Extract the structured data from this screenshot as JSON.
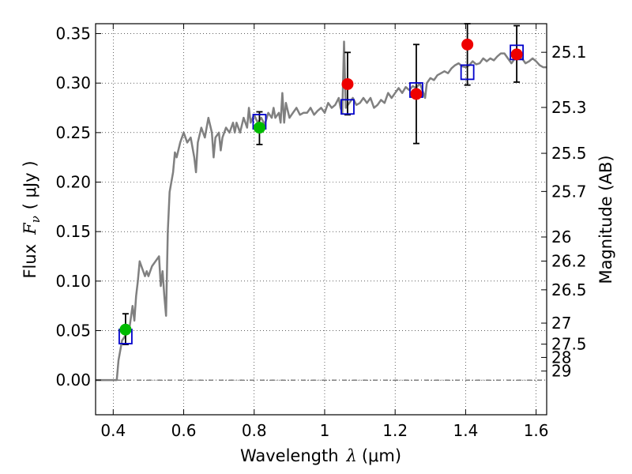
{
  "chart_data": {
    "type": "scatter",
    "xlabel_main": "Wavelength",
    "xlabel_sym": "λ",
    "xlabel_unit": "(μm)",
    "ylabel_main": "Flux",
    "ylabel_sym": "F",
    "ylabel_sub": "ν",
    "ylabel_unit": "( μJy )",
    "y2label": "Magnitude (AB)",
    "xlim": [
      0.35,
      1.63
    ],
    "ylim": [
      -0.035,
      0.36
    ],
    "x_ticks": [
      0.4,
      0.6,
      0.8,
      1.0,
      1.2,
      1.4,
      1.6
    ],
    "x_tick_labels": [
      "0.4",
      "0.6",
      "0.8",
      "1",
      "1.2",
      "1.4",
      "1.6"
    ],
    "y_ticks": [
      0.0,
      0.05,
      0.1,
      0.15,
      0.2,
      0.25,
      0.3,
      0.35
    ],
    "y_tick_labels": [
      "0.00",
      "0.05",
      "0.10",
      "0.15",
      "0.20",
      "0.25",
      "0.30",
      "0.35"
    ],
    "mag_ticks": [
      25.1,
      25.3,
      25.5,
      25.7,
      26,
      26.2,
      26.5,
      27,
      27.5,
      28,
      29
    ],
    "mag_tick_labels": [
      "25.1",
      "25.3",
      "25.5",
      "25.7",
      "26",
      "26.2",
      "26.5",
      "27",
      "27.5",
      "28",
      "29"
    ],
    "grid": true,
    "colors": {
      "spectrum": "#808080",
      "green_points": "#00bb00",
      "red_points": "#ee0000",
      "model_boxes": "#0000cc",
      "errorbars": "#000000"
    },
    "spectrum": {
      "name": "model spectrum",
      "points": [
        [
          0.35,
          0.0
        ],
        [
          0.4,
          0.0
        ],
        [
          0.41,
          0.0
        ],
        [
          0.415,
          0.02
        ],
        [
          0.425,
          0.04
        ],
        [
          0.435,
          0.045
        ],
        [
          0.445,
          0.05
        ],
        [
          0.455,
          0.075
        ],
        [
          0.46,
          0.06
        ],
        [
          0.465,
          0.085
        ],
        [
          0.47,
          0.1
        ],
        [
          0.475,
          0.12
        ],
        [
          0.48,
          0.115
        ],
        [
          0.49,
          0.105
        ],
        [
          0.495,
          0.11
        ],
        [
          0.5,
          0.105
        ],
        [
          0.51,
          0.115
        ],
        [
          0.52,
          0.12
        ],
        [
          0.53,
          0.125
        ],
        [
          0.535,
          0.095
        ],
        [
          0.54,
          0.11
        ],
        [
          0.545,
          0.085
        ],
        [
          0.55,
          0.065
        ],
        [
          0.555,
          0.15
        ],
        [
          0.56,
          0.19
        ],
        [
          0.57,
          0.21
        ],
        [
          0.575,
          0.23
        ],
        [
          0.58,
          0.225
        ],
        [
          0.59,
          0.24
        ],
        [
          0.6,
          0.25
        ],
        [
          0.61,
          0.24
        ],
        [
          0.62,
          0.245
        ],
        [
          0.63,
          0.225
        ],
        [
          0.635,
          0.21
        ],
        [
          0.64,
          0.24
        ],
        [
          0.65,
          0.255
        ],
        [
          0.66,
          0.245
        ],
        [
          0.67,
          0.265
        ],
        [
          0.68,
          0.25
        ],
        [
          0.685,
          0.225
        ],
        [
          0.69,
          0.245
        ],
        [
          0.7,
          0.25
        ],
        [
          0.705,
          0.232
        ],
        [
          0.71,
          0.245
        ],
        [
          0.72,
          0.255
        ],
        [
          0.73,
          0.25
        ],
        [
          0.74,
          0.26
        ],
        [
          0.745,
          0.25
        ],
        [
          0.75,
          0.26
        ],
        [
          0.76,
          0.25
        ],
        [
          0.77,
          0.265
        ],
        [
          0.78,
          0.255
        ],
        [
          0.785,
          0.275
        ],
        [
          0.79,
          0.26
        ],
        [
          0.8,
          0.268
        ],
        [
          0.81,
          0.26
        ],
        [
          0.82,
          0.265
        ],
        [
          0.83,
          0.258
        ],
        [
          0.84,
          0.27
        ],
        [
          0.85,
          0.265
        ],
        [
          0.855,
          0.275
        ],
        [
          0.86,
          0.265
        ],
        [
          0.87,
          0.27
        ],
        [
          0.875,
          0.26
        ],
        [
          0.88,
          0.29
        ],
        [
          0.885,
          0.26
        ],
        [
          0.89,
          0.28
        ],
        [
          0.9,
          0.265
        ],
        [
          0.91,
          0.27
        ],
        [
          0.92,
          0.275
        ],
        [
          0.93,
          0.268
        ],
        [
          0.94,
          0.27
        ],
        [
          0.95,
          0.27
        ],
        [
          0.96,
          0.275
        ],
        [
          0.97,
          0.268
        ],
        [
          0.98,
          0.272
        ],
        [
          0.99,
          0.275
        ],
        [
          1.0,
          0.27
        ],
        [
          1.01,
          0.28
        ],
        [
          1.02,
          0.275
        ],
        [
          1.03,
          0.278
        ],
        [
          1.04,
          0.285
        ],
        [
          1.045,
          0.275
        ],
        [
          1.05,
          0.27
        ],
        [
          1.055,
          0.342
        ],
        [
          1.06,
          0.275
        ],
        [
          1.07,
          0.28
        ],
        [
          1.08,
          0.285
        ],
        [
          1.09,
          0.278
        ],
        [
          1.1,
          0.28
        ],
        [
          1.11,
          0.285
        ],
        [
          1.12,
          0.28
        ],
        [
          1.13,
          0.285
        ],
        [
          1.14,
          0.275
        ],
        [
          1.15,
          0.278
        ],
        [
          1.16,
          0.283
        ],
        [
          1.17,
          0.28
        ],
        [
          1.18,
          0.29
        ],
        [
          1.19,
          0.285
        ],
        [
          1.2,
          0.29
        ],
        [
          1.21,
          0.295
        ],
        [
          1.22,
          0.29
        ],
        [
          1.23,
          0.296
        ],
        [
          1.24,
          0.293
        ],
        [
          1.25,
          0.297
        ],
        [
          1.26,
          0.295
        ],
        [
          1.27,
          0.3
        ],
        [
          1.28,
          0.29
        ],
        [
          1.285,
          0.285
        ],
        [
          1.29,
          0.3
        ],
        [
          1.3,
          0.305
        ],
        [
          1.31,
          0.303
        ],
        [
          1.32,
          0.308
        ],
        [
          1.33,
          0.31
        ],
        [
          1.34,
          0.312
        ],
        [
          1.35,
          0.31
        ],
        [
          1.36,
          0.315
        ],
        [
          1.37,
          0.318
        ],
        [
          1.38,
          0.32
        ],
        [
          1.39,
          0.317
        ],
        [
          1.4,
          0.316
        ],
        [
          1.41,
          0.318
        ],
        [
          1.42,
          0.322
        ],
        [
          1.43,
          0.319
        ],
        [
          1.44,
          0.32
        ],
        [
          1.45,
          0.325
        ],
        [
          1.46,
          0.322
        ],
        [
          1.47,
          0.325
        ],
        [
          1.48,
          0.323
        ],
        [
          1.49,
          0.327
        ],
        [
          1.5,
          0.33
        ],
        [
          1.51,
          0.33
        ],
        [
          1.52,
          0.325
        ],
        [
          1.53,
          0.32
        ],
        [
          1.54,
          0.325
        ],
        [
          1.55,
          0.328
        ],
        [
          1.56,
          0.325
        ],
        [
          1.57,
          0.32
        ],
        [
          1.58,
          0.322
        ],
        [
          1.59,
          0.325
        ],
        [
          1.6,
          0.322
        ],
        [
          1.61,
          0.318
        ],
        [
          1.62,
          0.316
        ],
        [
          1.63,
          0.316
        ]
      ]
    },
    "observed_green": {
      "name": "observed (green)",
      "points": [
        {
          "x": 0.435,
          "y": 0.051,
          "yerr_low": 0.036,
          "yerr_high": 0.067
        },
        {
          "x": 0.815,
          "y": 0.255,
          "yerr_low": 0.238,
          "yerr_high": 0.271
        }
      ]
    },
    "observed_red": {
      "name": "observed (red)",
      "points": [
        {
          "x": 1.065,
          "y": 0.299,
          "yerr_low": 0.268,
          "yerr_high": 0.331
        },
        {
          "x": 1.26,
          "y": 0.289,
          "yerr_low": 0.239,
          "yerr_high": 0.339
        },
        {
          "x": 1.405,
          "y": 0.339,
          "yerr_low": 0.298,
          "yerr_high": 0.36
        },
        {
          "x": 1.545,
          "y": 0.329,
          "yerr_low": 0.301,
          "yerr_high": 0.358
        }
      ]
    },
    "model_boxes": {
      "name": "model photometry",
      "points": [
        {
          "x": 0.435,
          "y": 0.044
        },
        {
          "x": 0.815,
          "y": 0.261
        },
        {
          "x": 1.065,
          "y": 0.276
        },
        {
          "x": 1.26,
          "y": 0.293
        },
        {
          "x": 1.405,
          "y": 0.311
        },
        {
          "x": 1.545,
          "y": 0.331
        }
      ]
    }
  }
}
